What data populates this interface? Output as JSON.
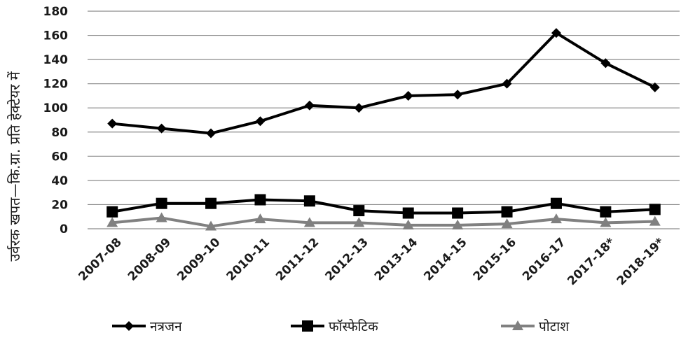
{
  "chart_data": {
    "type": "line",
    "title": "",
    "xlabel": "",
    "ylabel": "उर्वरक खपत—कि.ग्रा. प्रति हेक्टेयर में",
    "ylim": [
      0,
      180
    ],
    "yticks": [
      0,
      20,
      40,
      60,
      80,
      100,
      120,
      140,
      160,
      180
    ],
    "grid": true,
    "legend_position": "bottom",
    "categories": [
      "2007-08",
      "2008-09",
      "2009-10",
      "2010-11",
      "2011-12",
      "2012-13",
      "2013-14",
      "2014-15",
      "2015-16",
      "2016-17",
      "2017-18*",
      "2018-19*"
    ],
    "series": [
      {
        "name": "नत्रजन",
        "marker": "diamond",
        "color": "#000000",
        "values": [
          87,
          83,
          79,
          89,
          102,
          100,
          110,
          111,
          120,
          162,
          137,
          117
        ]
      },
      {
        "name": "फॉस्फेटिक",
        "marker": "square",
        "color": "#000000",
        "values": [
          14,
          21,
          21,
          24,
          23,
          15,
          13,
          13,
          14,
          21,
          14,
          16
        ]
      },
      {
        "name": "पोटाश",
        "marker": "triangle",
        "color": "#808080",
        "values": [
          5,
          9,
          2,
          8,
          5,
          5,
          3,
          3,
          4,
          8,
          5,
          6
        ]
      }
    ]
  }
}
